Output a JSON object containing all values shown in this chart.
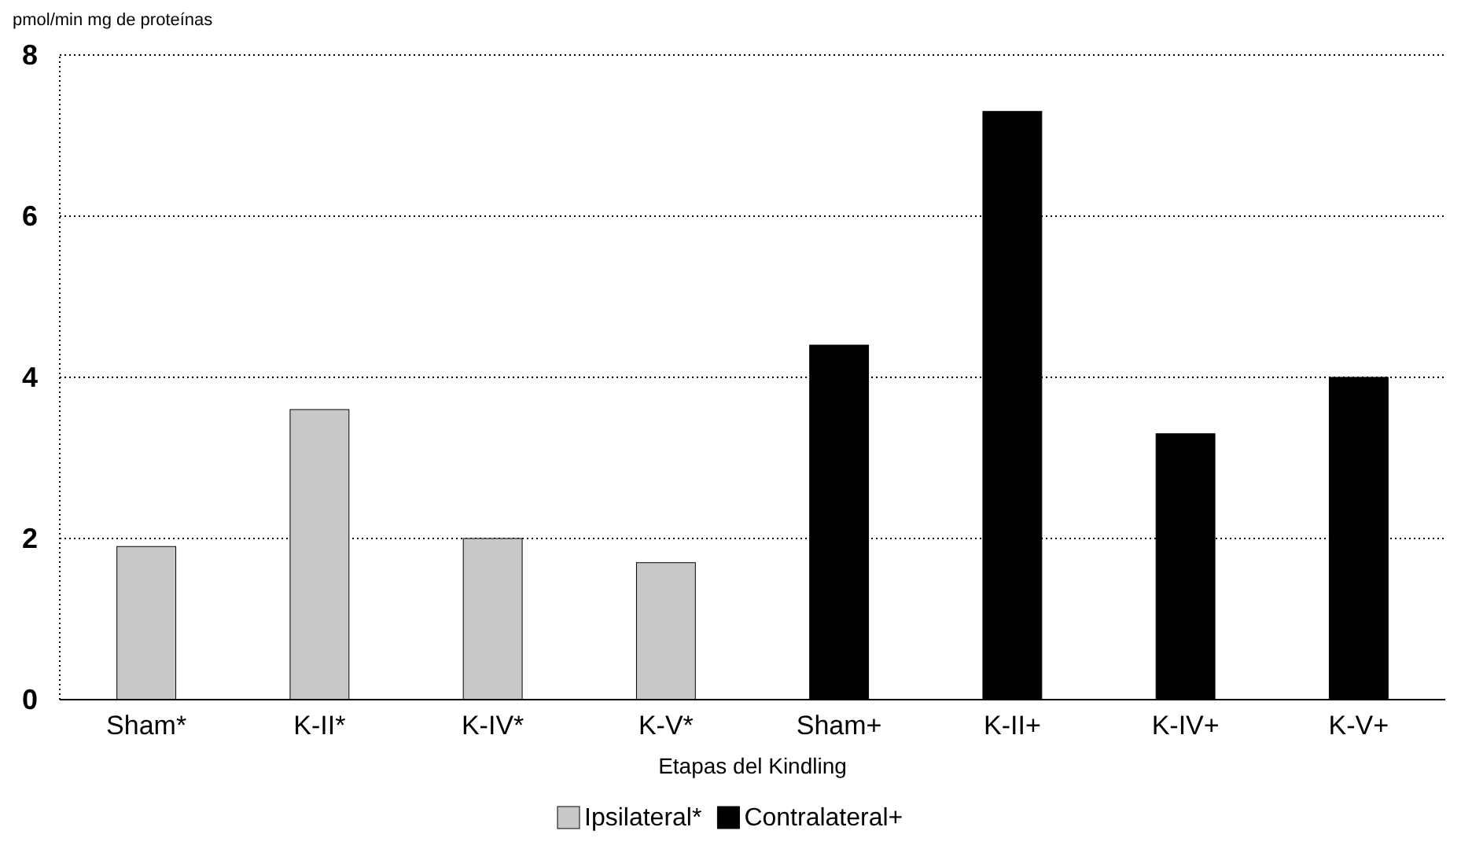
{
  "chart_data": {
    "type": "bar",
    "ylabel": "pmol/min mg de proteínas",
    "xlabel": "Etapas del Kindling",
    "categories": [
      "Sham*",
      "K-II*",
      "K-IV*",
      "K-V*",
      "Sham+",
      "K-II+",
      "K-IV+",
      "K-V+"
    ],
    "series": [
      {
        "name": "Ipsilateral*",
        "color": "#c8c8c8",
        "values": [
          1.9,
          3.6,
          2.0,
          1.7,
          null,
          null,
          null,
          null
        ]
      },
      {
        "name": "Contralateral+",
        "color": "#000000",
        "values": [
          null,
          null,
          null,
          null,
          4.4,
          7.3,
          3.3,
          4.0
        ]
      }
    ],
    "ylim": [
      0,
      8
    ],
    "yticks": [
      0,
      2,
      4,
      6,
      8
    ],
    "grid": "y",
    "legend": "bottom"
  }
}
